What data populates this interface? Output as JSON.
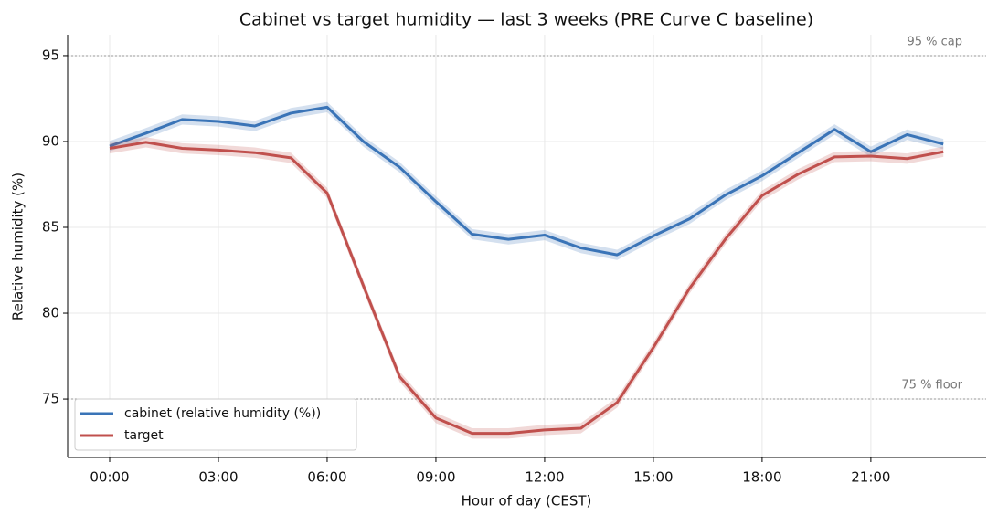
{
  "chart_data": {
    "type": "line",
    "title": "Cabinet vs target humidity — last 3 weeks (PRE Curve C baseline)",
    "x_label": "Hour of day (CEST)",
    "y_label": "Relative humidity (%)",
    "x": [
      0,
      1,
      2,
      3,
      4,
      5,
      6,
      7,
      8,
      9,
      10,
      11,
      12,
      13,
      14,
      15,
      16,
      17,
      18,
      19,
      20,
      21,
      22,
      23
    ],
    "series": [
      {
        "name": "cabinet (relative humidity (%))",
        "color": "#3a74b7",
        "band": 0.3,
        "values": [
          89.73,
          90.48,
          91.28,
          91.17,
          90.9,
          91.65,
          92.0,
          90.0,
          88.5,
          86.5,
          84.6,
          84.3,
          84.55,
          83.8,
          83.4,
          84.5,
          85.5,
          86.9,
          88.0,
          89.35,
          90.7,
          89.4,
          90.4,
          89.85
        ]
      },
      {
        "name": "target",
        "color": "#c0504d",
        "band": 0.3,
        "values": [
          89.6,
          89.95,
          89.6,
          89.5,
          89.35,
          89.05,
          87.0,
          81.6,
          76.3,
          73.9,
          73.0,
          73.0,
          73.2,
          73.3,
          74.8,
          78.0,
          81.45,
          84.35,
          86.85,
          88.1,
          89.1,
          89.15,
          89.0,
          89.4
        ]
      }
    ],
    "xlim": [
      -1.16,
      24.18
    ],
    "xticks": [
      {
        "value": 0,
        "label": "00:00"
      },
      {
        "value": 3,
        "label": "03:00"
      },
      {
        "value": 6,
        "label": "06:00"
      },
      {
        "value": 9,
        "label": "09:00"
      },
      {
        "value": 12,
        "label": "12:00"
      },
      {
        "value": 15,
        "label": "15:00"
      },
      {
        "value": 18,
        "label": "18:00"
      },
      {
        "value": 21,
        "label": "21:00"
      }
    ],
    "ylim": [
      71.6,
      96.22
    ],
    "yticks": [
      75,
      80,
      85,
      90,
      95
    ],
    "reference_lines": [
      {
        "value": 95,
        "label": "95 % cap"
      },
      {
        "value": 75,
        "label": "75 % floor"
      }
    ],
    "grid": true,
    "legend": "lower left"
  }
}
